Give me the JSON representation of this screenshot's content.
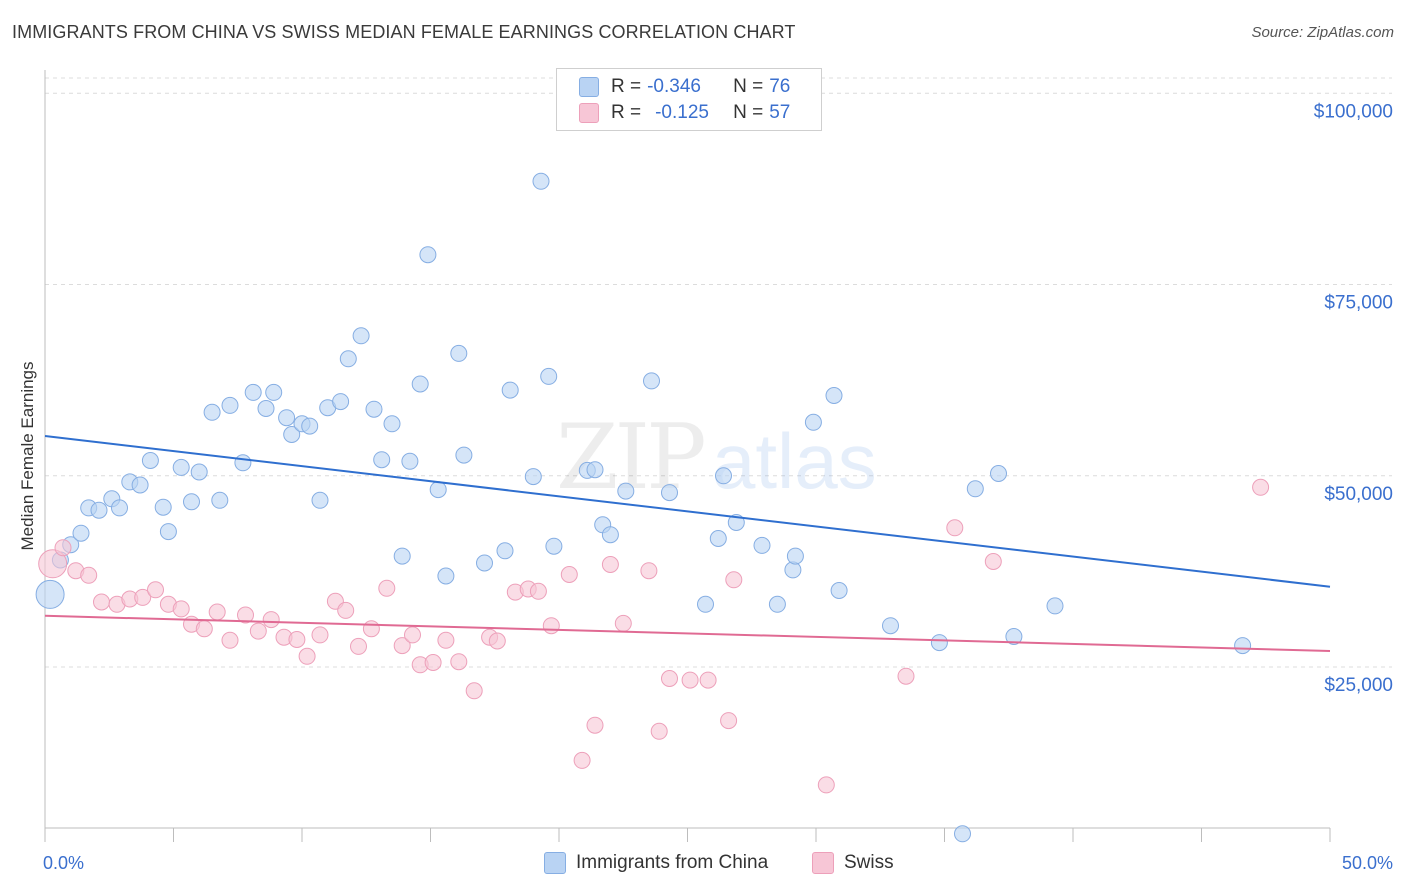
{
  "title": "IMMIGRANTS FROM CHINA VS SWISS MEDIAN FEMALE EARNINGS CORRELATION CHART",
  "source": "Source: ZipAtlas.com",
  "watermark": {
    "zip": "ZIP",
    "atlas": "atlas"
  },
  "legend": {
    "r_label": "R =",
    "n_label": "N =",
    "items": [
      {
        "r": "-0.346",
        "n": "76"
      },
      {
        "r": "-0.125",
        "n": "57"
      }
    ]
  },
  "bottom_legend": [
    "Immigrants from China",
    "Swiss"
  ],
  "colors": {
    "blue_fill": "#b9d3f3",
    "blue_stroke": "#86aee3",
    "blue_line": "#2f6fcf",
    "pink_fill": "#f7c6d6",
    "pink_stroke": "#eda0ba",
    "pink_line": "#e06a93",
    "axis_text": "#3a6fce"
  },
  "chart_data": {
    "type": "scatter",
    "title": "IMMIGRANTS FROM CHINA VS SWISS MEDIAN FEMALE EARNINGS CORRELATION CHART",
    "xlabel": "",
    "ylabel": "Median Female Earnings",
    "xlim": [
      0,
      50
    ],
    "ylim": [
      2000,
      103000
    ],
    "x_tick_labels": [
      "0.0%",
      "50.0%"
    ],
    "y_ticks": [
      25000,
      50000,
      75000,
      100000
    ],
    "y_tick_labels": [
      "$25,000",
      "$50,000",
      "$75,000",
      "$100,000"
    ],
    "grid": true,
    "series": [
      {
        "name": "Immigrants from China",
        "trend": [
          [
            0,
            55200
          ],
          [
            50,
            35500
          ]
        ],
        "points": [
          [
            0.2,
            34500
          ],
          [
            0.6,
            39000
          ],
          [
            1.0,
            41000
          ],
          [
            1.4,
            42500
          ],
          [
            1.7,
            45800
          ],
          [
            2.1,
            45500
          ],
          [
            2.6,
            47000
          ],
          [
            2.9,
            45800
          ],
          [
            3.3,
            49200
          ],
          [
            3.7,
            48800
          ],
          [
            4.1,
            52000
          ],
          [
            4.6,
            45900
          ],
          [
            4.8,
            42700
          ],
          [
            5.3,
            51100
          ],
          [
            5.7,
            46600
          ],
          [
            6.0,
            50500
          ],
          [
            6.5,
            58300
          ],
          [
            6.8,
            46800
          ],
          [
            7.2,
            59200
          ],
          [
            7.7,
            51700
          ],
          [
            8.1,
            60900
          ],
          [
            8.6,
            58800
          ],
          [
            8.9,
            60900
          ],
          [
            9.4,
            57600
          ],
          [
            9.6,
            55400
          ],
          [
            10.0,
            56800
          ],
          [
            10.3,
            56500
          ],
          [
            10.7,
            46800
          ],
          [
            11.0,
            58900
          ],
          [
            11.5,
            59700
          ],
          [
            11.8,
            65300
          ],
          [
            12.3,
            68300
          ],
          [
            12.8,
            58700
          ],
          [
            13.1,
            52100
          ],
          [
            13.5,
            56800
          ],
          [
            13.9,
            39500
          ],
          [
            14.2,
            51900
          ],
          [
            14.6,
            62000
          ],
          [
            14.9,
            78900
          ],
          [
            15.3,
            48200
          ],
          [
            15.6,
            36900
          ],
          [
            16.1,
            66000
          ],
          [
            16.3,
            52700
          ],
          [
            17.1,
            38600
          ],
          [
            17.9,
            40200
          ],
          [
            18.1,
            61200
          ],
          [
            19.0,
            49900
          ],
          [
            19.3,
            88500
          ],
          [
            19.6,
            63000
          ],
          [
            19.8,
            40800
          ],
          [
            21.1,
            50700
          ],
          [
            21.4,
            50800
          ],
          [
            21.7,
            43600
          ],
          [
            22.0,
            42300
          ],
          [
            22.6,
            48000
          ],
          [
            23.6,
            62400
          ],
          [
            24.3,
            47800
          ],
          [
            25.7,
            33200
          ],
          [
            26.2,
            41800
          ],
          [
            26.4,
            50000
          ],
          [
            26.9,
            43900
          ],
          [
            27.9,
            40900
          ],
          [
            28.5,
            33200
          ],
          [
            29.1,
            37700
          ],
          [
            29.2,
            39500
          ],
          [
            29.9,
            57000
          ],
          [
            30.7,
            60500
          ],
          [
            30.9,
            35000
          ],
          [
            32.9,
            30400
          ],
          [
            34.8,
            28200
          ],
          [
            35.7,
            3200
          ],
          [
            36.2,
            48300
          ],
          [
            37.1,
            50300
          ],
          [
            37.7,
            29000
          ],
          [
            39.3,
            33000
          ],
          [
            46.6,
            27800
          ]
        ]
      },
      {
        "name": "Swiss",
        "trend": [
          [
            0,
            31700
          ],
          [
            50,
            27100
          ]
        ],
        "points": [
          [
            0.3,
            38500
          ],
          [
            0.7,
            40600
          ],
          [
            1.2,
            37600
          ],
          [
            1.7,
            37000
          ],
          [
            2.2,
            33500
          ],
          [
            2.8,
            33200
          ],
          [
            3.3,
            33900
          ],
          [
            3.8,
            34100
          ],
          [
            4.3,
            35100
          ],
          [
            4.8,
            33200
          ],
          [
            5.3,
            32600
          ],
          [
            5.7,
            30600
          ],
          [
            6.2,
            30000
          ],
          [
            6.7,
            32200
          ],
          [
            7.2,
            28500
          ],
          [
            7.8,
            31800
          ],
          [
            8.3,
            29700
          ],
          [
            8.8,
            31200
          ],
          [
            9.3,
            28900
          ],
          [
            9.8,
            28600
          ],
          [
            10.2,
            26400
          ],
          [
            10.7,
            29200
          ],
          [
            11.3,
            33600
          ],
          [
            11.7,
            32400
          ],
          [
            12.2,
            27700
          ],
          [
            12.7,
            30000
          ],
          [
            13.3,
            35300
          ],
          [
            13.9,
            27800
          ],
          [
            14.3,
            29200
          ],
          [
            14.6,
            25300
          ],
          [
            15.1,
            25600
          ],
          [
            15.6,
            28500
          ],
          [
            16.1,
            25700
          ],
          [
            16.7,
            21900
          ],
          [
            17.3,
            28900
          ],
          [
            17.6,
            28400
          ],
          [
            18.3,
            34800
          ],
          [
            18.8,
            35200
          ],
          [
            19.2,
            34900
          ],
          [
            19.7,
            30400
          ],
          [
            20.4,
            37100
          ],
          [
            20.9,
            12800
          ],
          [
            21.4,
            17400
          ],
          [
            22.0,
            38400
          ],
          [
            22.5,
            30700
          ],
          [
            23.5,
            37600
          ],
          [
            23.9,
            16600
          ],
          [
            24.3,
            23500
          ],
          [
            25.1,
            23300
          ],
          [
            25.8,
            23300
          ],
          [
            26.6,
            18000
          ],
          [
            26.8,
            36400
          ],
          [
            30.4,
            9600
          ],
          [
            33.5,
            23800
          ],
          [
            35.4,
            43200
          ],
          [
            36.9,
            38800
          ],
          [
            47.3,
            48500
          ]
        ]
      }
    ]
  }
}
